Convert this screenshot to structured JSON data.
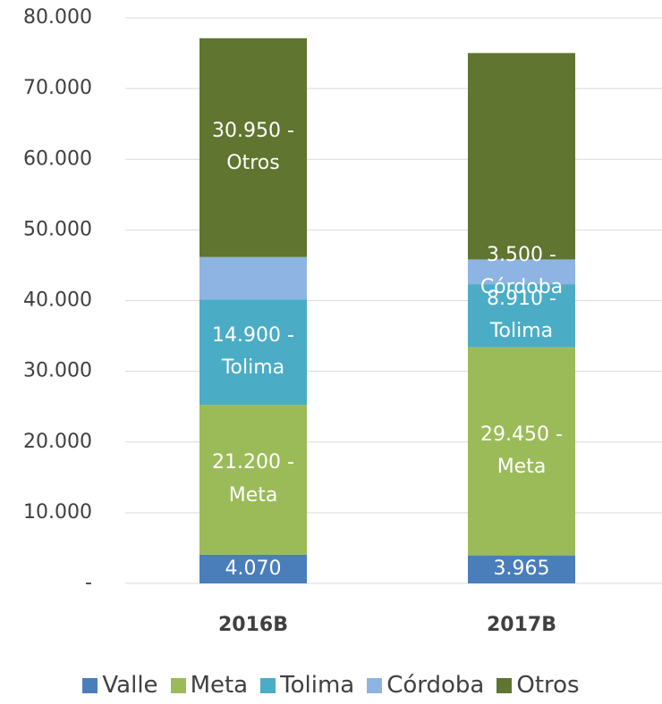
{
  "chart_data": {
    "type": "bar",
    "stacked": true,
    "categories": [
      "2016B",
      "2017B"
    ],
    "series": [
      {
        "name": "Valle",
        "color": "#4a7ebb",
        "values": [
          4070,
          3965
        ],
        "value_labels": [
          "4.070",
          "3.965"
        ]
      },
      {
        "name": "Meta",
        "color": "#9bbb59",
        "values": [
          21200,
          29450
        ],
        "value_labels": [
          "21.200 - Meta",
          "29.450 - Meta"
        ]
      },
      {
        "name": "Tolima",
        "color": "#4bacc6",
        "values": [
          14900,
          8910
        ],
        "value_labels": [
          "14.900 - Tolima",
          "8.910 - Tolima"
        ]
      },
      {
        "name": "Córdoba",
        "color": "#8eb4e3",
        "values": [
          6000,
          3500
        ],
        "value_labels": [
          null,
          "3.500 - Córdoba"
        ]
      },
      {
        "name": "Otros",
        "color": "#5f7530",
        "values": [
          30950,
          29200
        ],
        "value_labels": [
          "30.950 - Otros",
          null
        ]
      }
    ],
    "ylim": [
      0,
      80000
    ],
    "yticks": [
      {
        "value": 0,
        "label": "-"
      },
      {
        "value": 10000,
        "label": "10.000"
      },
      {
        "value": 20000,
        "label": "20.000"
      },
      {
        "value": 30000,
        "label": "30.000"
      },
      {
        "value": 40000,
        "label": "40.000"
      },
      {
        "value": 50000,
        "label": "50.000"
      },
      {
        "value": 60000,
        "label": "60.000"
      },
      {
        "value": 70000,
        "label": "70.000"
      },
      {
        "value": 80000,
        "label": "80.000"
      }
    ],
    "grid": true,
    "legend": "bottom"
  }
}
